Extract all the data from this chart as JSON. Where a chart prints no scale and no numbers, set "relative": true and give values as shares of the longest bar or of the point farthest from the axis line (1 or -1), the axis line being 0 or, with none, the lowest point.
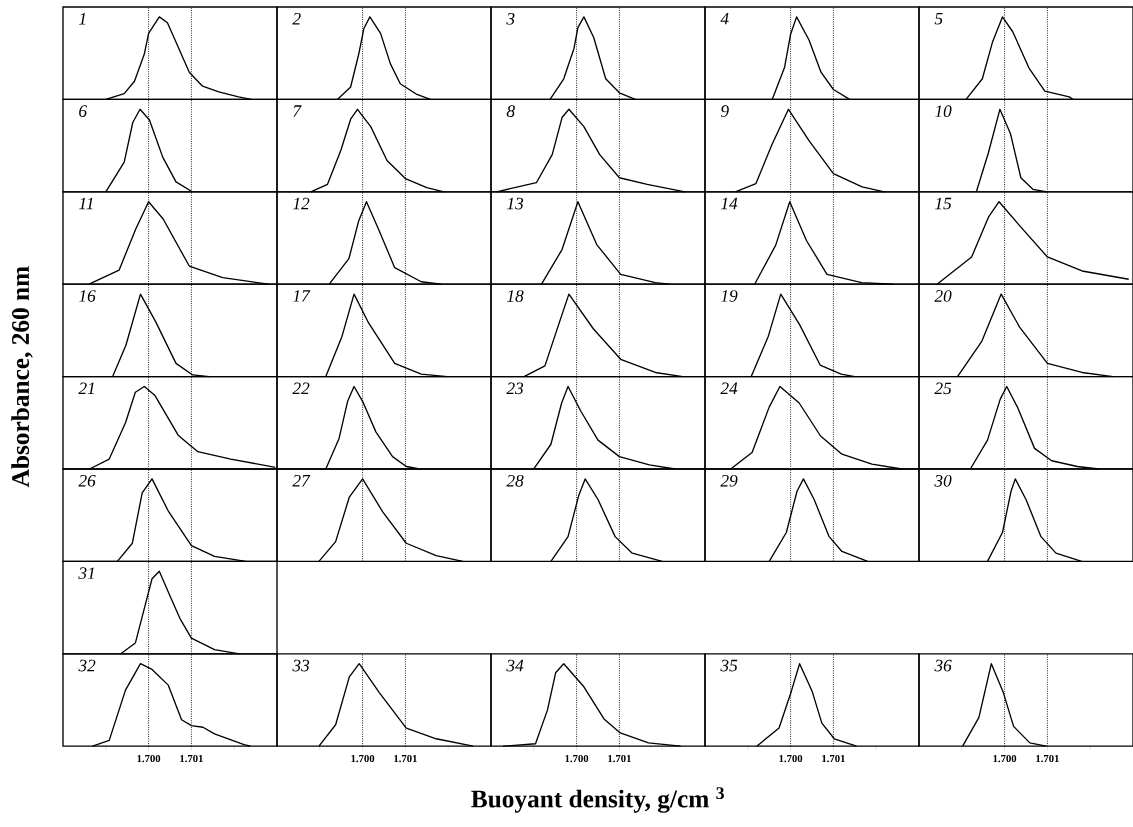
{
  "chart_data": [
    {
      "type": "line",
      "title": "1",
      "relative": true,
      "color": "#000000",
      "xlim": [
        1.698,
        1.703
      ],
      "ref_lines": [
        {
          "axis": "x",
          "value": 1.7,
          "line_style": "dotted"
        },
        {
          "axis": "x",
          "value": 1.701,
          "line_style": "dotted"
        }
      ],
      "x": [
        1.699,
        1.69943,
        1.69967,
        1.6999,
        1.7,
        1.70025,
        1.70044,
        1.70067,
        1.70095,
        1.70126,
        1.70164,
        1.7021,
        1.7024
      ],
      "values": [
        0,
        0.07,
        0.22,
        0.55,
        0.8,
        1,
        0.93,
        0.66,
        0.33,
        0.16,
        0.09,
        0.03,
        0
      ]
    },
    {
      "type": "line",
      "title": "2",
      "relative": true,
      "color": "#000000",
      "xlim": [
        1.698,
        1.703
      ],
      "ref_lines": [
        {
          "axis": "x",
          "value": 1.7,
          "line_style": "dotted"
        },
        {
          "axis": "x",
          "value": 1.701,
          "line_style": "dotted"
        }
      ],
      "x": [
        1.69941,
        1.69972,
        1.69991,
        1.70003,
        1.70017,
        1.70042,
        1.70065,
        1.70088,
        1.70127,
        1.70158
      ],
      "values": [
        0,
        0.15,
        0.55,
        0.86,
        1,
        0.8,
        0.43,
        0.19,
        0.06,
        0
      ]
    },
    {
      "type": "line",
      "title": "3",
      "relative": true,
      "color": "#000000",
      "xlim": [
        1.698,
        1.703
      ],
      "ref_lines": [
        {
          "axis": "x",
          "value": 1.7,
          "line_style": "dotted"
        },
        {
          "axis": "x",
          "value": 1.701,
          "line_style": "dotted"
        }
      ],
      "x": [
        1.69938,
        1.6997,
        1.69994,
        1.70003,
        1.70017,
        1.7004,
        1.70068,
        1.701,
        1.70137
      ],
      "values": [
        0,
        0.25,
        0.62,
        0.87,
        1,
        0.75,
        0.25,
        0.08,
        0
      ]
    },
    {
      "type": "line",
      "title": "4",
      "relative": true,
      "color": "#000000",
      "xlim": [
        1.698,
        1.703
      ],
      "ref_lines": [
        {
          "axis": "x",
          "value": 1.7,
          "line_style": "dotted"
        },
        {
          "axis": "x",
          "value": 1.701,
          "line_style": "dotted"
        }
      ],
      "x": [
        1.69957,
        1.69986,
        1.7,
        1.70014,
        1.70043,
        1.70071,
        1.701,
        1.70138
      ],
      "values": [
        0,
        0.39,
        0.79,
        1,
        0.72,
        0.33,
        0.12,
        0
      ]
    },
    {
      "type": "line",
      "title": "5",
      "relative": true,
      "color": "#000000",
      "xlim": [
        1.698,
        1.703
      ],
      "ref_lines": [
        {
          "axis": "x",
          "value": 1.7,
          "line_style": "dotted"
        },
        {
          "axis": "x",
          "value": 1.701,
          "line_style": "dotted"
        }
      ],
      "x": [
        1.6991,
        1.69948,
        1.69972,
        1.69995,
        1.70019,
        1.70057,
        1.70094,
        1.70151,
        1.7016
      ],
      "values": [
        0,
        0.25,
        0.7,
        1,
        0.82,
        0.38,
        0.1,
        0.03,
        0
      ]
    },
    {
      "type": "line",
      "title": "6",
      "relative": true,
      "color": "#000000",
      "xlim": [
        1.698,
        1.703
      ],
      "ref_lines": [
        {
          "axis": "x",
          "value": 1.7,
          "line_style": "dotted"
        },
        {
          "axis": "x",
          "value": 1.701,
          "line_style": "dotted"
        }
      ],
      "x": [
        1.699,
        1.69943,
        1.69963,
        1.6998,
        1.70002,
        1.70033,
        1.70064,
        1.70102
      ],
      "values": [
        0,
        0.36,
        0.84,
        1,
        0.87,
        0.42,
        0.12,
        0
      ]
    },
    {
      "type": "line",
      "title": "7",
      "relative": true,
      "color": "#000000",
      "xlim": [
        1.698,
        1.703
      ],
      "ref_lines": [
        {
          "axis": "x",
          "value": 1.7,
          "line_style": "dotted"
        },
        {
          "axis": "x",
          "value": 1.701,
          "line_style": "dotted"
        }
      ],
      "x": [
        1.69879,
        1.69918,
        1.69949,
        1.69972,
        1.69988,
        1.70019,
        1.70057,
        1.701,
        1.7015,
        1.7019
      ],
      "values": [
        0,
        0.09,
        0.5,
        0.88,
        1,
        0.79,
        0.38,
        0.16,
        0.05,
        0
      ]
    },
    {
      "type": "line",
      "title": "8",
      "relative": true,
      "color": "#000000",
      "xlim": [
        1.698,
        1.703
      ],
      "ref_lines": [
        {
          "axis": "x",
          "value": 1.7,
          "line_style": "dotted"
        },
        {
          "axis": "x",
          "value": 1.701,
          "line_style": "dotted"
        }
      ],
      "x": [
        1.69813,
        1.69906,
        1.69943,
        1.69966,
        1.69982,
        1.70017,
        1.70054,
        1.701,
        1.70165,
        1.70253
      ],
      "values": [
        0,
        0.11,
        0.45,
        0.9,
        1,
        0.79,
        0.45,
        0.17,
        0.09,
        0
      ]
    },
    {
      "type": "line",
      "title": "9",
      "relative": true,
      "color": "#000000",
      "xlim": [
        1.698,
        1.703
      ],
      "ref_lines": [
        {
          "axis": "x",
          "value": 1.7,
          "line_style": "dotted"
        },
        {
          "axis": "x",
          "value": 1.701,
          "line_style": "dotted"
        }
      ],
      "x": [
        1.69871,
        1.69919,
        1.69957,
        1.69995,
        1.70043,
        1.701,
        1.70167,
        1.70219
      ],
      "values": [
        0,
        0.1,
        0.58,
        1,
        0.62,
        0.22,
        0.06,
        0
      ]
    },
    {
      "type": "line",
      "title": "10",
      "relative": true,
      "color": "#000000",
      "xlim": [
        1.698,
        1.703
      ],
      "ref_lines": [
        {
          "axis": "x",
          "value": 1.7,
          "line_style": "dotted"
        },
        {
          "axis": "x",
          "value": 1.701,
          "line_style": "dotted"
        }
      ],
      "x": [
        1.69934,
        1.69962,
        1.69989,
        1.70014,
        1.70038,
        1.70066,
        1.70099
      ],
      "values": [
        0,
        0.47,
        1,
        0.7,
        0.17,
        0.03,
        0
      ]
    },
    {
      "type": "line",
      "title": "11",
      "relative": true,
      "color": "#000000",
      "xlim": [
        1.698,
        1.703
      ],
      "ref_lines": [
        {
          "axis": "x",
          "value": 1.7,
          "line_style": "dotted"
        },
        {
          "axis": "x",
          "value": 1.701,
          "line_style": "dotted"
        }
      ],
      "x": [
        1.69861,
        1.69931,
        1.6997,
        1.7,
        1.70034,
        1.70095,
        1.70173,
        1.7028
      ],
      "values": [
        0,
        0.17,
        0.67,
        1,
        0.79,
        0.22,
        0.08,
        0
      ]
    },
    {
      "type": "line",
      "title": "12",
      "relative": true,
      "color": "#000000",
      "xlim": [
        1.698,
        1.703
      ],
      "ref_lines": [
        {
          "axis": "x",
          "value": 1.7,
          "line_style": "dotted"
        },
        {
          "axis": "x",
          "value": 1.701,
          "line_style": "dotted"
        }
      ],
      "x": [
        1.69922,
        1.69968,
        1.69991,
        1.70009,
        1.70037,
        1.70075,
        1.70137,
        1.70183
      ],
      "values": [
        0,
        0.31,
        0.77,
        1,
        0.67,
        0.2,
        0.03,
        0
      ]
    },
    {
      "type": "line",
      "title": "13",
      "relative": true,
      "color": "#000000",
      "xlim": [
        1.698,
        1.703
      ],
      "ref_lines": [
        {
          "axis": "x",
          "value": 1.7,
          "line_style": "dotted"
        },
        {
          "axis": "x",
          "value": 1.701,
          "line_style": "dotted"
        }
      ],
      "x": [
        1.69918,
        1.69966,
        1.70003,
        1.70047,
        1.70103,
        1.70184,
        1.70216
      ],
      "values": [
        0,
        0.42,
        1,
        0.48,
        0.12,
        0.02,
        0
      ]
    },
    {
      "type": "line",
      "title": "14",
      "relative": true,
      "color": "#000000",
      "xlim": [
        1.698,
        1.703
      ],
      "ref_lines": [
        {
          "axis": "x",
          "value": 1.7,
          "line_style": "dotted"
        },
        {
          "axis": "x",
          "value": 1.701,
          "line_style": "dotted"
        }
      ],
      "x": [
        1.69916,
        1.69965,
        1.69998,
        1.70037,
        1.70085,
        1.70166,
        1.70239
      ],
      "values": [
        0,
        0.47,
        1,
        0.53,
        0.12,
        0.02,
        0
      ]
    },
    {
      "type": "line",
      "title": "15",
      "relative": true,
      "color": "#000000",
      "xlim": [
        1.698,
        1.703
      ],
      "ref_lines": [
        {
          "axis": "x",
          "value": 1.7,
          "line_style": "dotted"
        },
        {
          "axis": "x",
          "value": 1.701,
          "line_style": "dotted"
        }
      ],
      "x": [
        1.69842,
        1.69923,
        1.69963,
        1.69987,
        1.70035,
        1.701,
        1.70181,
        1.7029
      ],
      "values": [
        0,
        0.33,
        0.82,
        1,
        0.71,
        0.33,
        0.16,
        0.06
      ]
    },
    {
      "type": "line",
      "title": "16",
      "ylabel": "Absorbance, 260 nm",
      "relative": true,
      "color": "#000000",
      "xlim": [
        1.698,
        1.703
      ],
      "ref_lines": [
        {
          "axis": "x",
          "value": 1.7,
          "line_style": "dotted"
        },
        {
          "axis": "x",
          "value": 1.701,
          "line_style": "dotted"
        }
      ],
      "x": [
        1.69916,
        1.69947,
        1.69981,
        1.70017,
        1.70064,
        1.70103,
        1.70142
      ],
      "values": [
        0,
        0.38,
        1,
        0.66,
        0.16,
        0.02,
        0
      ]
    },
    {
      "type": "line",
      "title": "17",
      "relative": true,
      "color": "#000000",
      "xlim": [
        1.698,
        1.703
      ],
      "ref_lines": [
        {
          "axis": "x",
          "value": 1.7,
          "line_style": "dotted"
        },
        {
          "axis": "x",
          "value": 1.701,
          "line_style": "dotted"
        }
      ],
      "x": [
        1.69914,
        1.69952,
        1.6998,
        1.70014,
        1.70075,
        1.70137,
        1.70198
      ],
      "values": [
        0,
        0.49,
        1,
        0.65,
        0.16,
        0.03,
        0
      ]
    },
    {
      "type": "line",
      "title": "18",
      "relative": true,
      "color": "#000000",
      "xlim": [
        1.698,
        1.703
      ],
      "ref_lines": [
        {
          "axis": "x",
          "value": 1.7,
          "line_style": "dotted"
        },
        {
          "axis": "x",
          "value": 1.701,
          "line_style": "dotted"
        }
      ],
      "x": [
        1.69877,
        1.69926,
        1.69958,
        1.69982,
        1.70039,
        1.70103,
        1.70184,
        1.70248
      ],
      "values": [
        0,
        0.13,
        0.63,
        1,
        0.58,
        0.21,
        0.05,
        0
      ]
    },
    {
      "type": "line",
      "title": "19",
      "relative": true,
      "color": "#000000",
      "xlim": [
        1.698,
        1.703
      ],
      "ref_lines": [
        {
          "axis": "x",
          "value": 1.7,
          "line_style": "dotted"
        },
        {
          "axis": "x",
          "value": 1.701,
          "line_style": "dotted"
        }
      ],
      "x": [
        1.69908,
        1.69948,
        1.69977,
        1.70021,
        1.70069,
        1.70118,
        1.7015
      ],
      "values": [
        0,
        0.49,
        1,
        0.63,
        0.14,
        0.03,
        0
      ]
    },
    {
      "type": "line",
      "title": "20",
      "relative": true,
      "color": "#000000",
      "xlim": [
        1.698,
        1.703
      ],
      "ref_lines": [
        {
          "axis": "x",
          "value": 1.7,
          "line_style": "dotted"
        },
        {
          "axis": "x",
          "value": 1.701,
          "line_style": "dotted"
        }
      ],
      "x": [
        1.6989,
        1.69947,
        1.69992,
        1.70035,
        1.701,
        1.70181,
        1.70253
      ],
      "values": [
        0,
        0.43,
        1,
        0.6,
        0.16,
        0.05,
        0
      ]
    },
    {
      "type": "line",
      "title": "21",
      "relative": true,
      "color": "#000000",
      "xlim": [
        1.698,
        1.703
      ],
      "ref_lines": [
        {
          "axis": "x",
          "value": 1.7,
          "line_style": "dotted"
        },
        {
          "axis": "x",
          "value": 1.701,
          "line_style": "dotted"
        }
      ],
      "x": [
        1.69862,
        1.69908,
        1.69946,
        1.69969,
        1.6999,
        1.70015,
        1.70069,
        1.70115,
        1.70192,
        1.70296
      ],
      "values": [
        0,
        0.12,
        0.56,
        0.93,
        1,
        0.89,
        0.41,
        0.21,
        0.12,
        0.02
      ]
    },
    {
      "type": "line",
      "title": "22",
      "relative": true,
      "color": "#000000",
      "xlim": [
        1.698,
        1.703
      ],
      "ref_lines": [
        {
          "axis": "x",
          "value": 1.7,
          "line_style": "dotted"
        },
        {
          "axis": "x",
          "value": 1.701,
          "line_style": "dotted"
        }
      ],
      "x": [
        1.69914,
        1.69945,
        1.69965,
        1.6998,
        1.7,
        1.70031,
        1.7007,
        1.70102,
        1.70133
      ],
      "values": [
        0,
        0.37,
        0.82,
        1,
        0.82,
        0.45,
        0.15,
        0.03,
        0
      ]
    },
    {
      "type": "line",
      "title": "23",
      "relative": true,
      "color": "#000000",
      "xlim": [
        1.698,
        1.703
      ],
      "ref_lines": [
        {
          "axis": "x",
          "value": 1.7,
          "line_style": "dotted"
        },
        {
          "axis": "x",
          "value": 1.701,
          "line_style": "dotted"
        }
      ],
      "x": [
        1.699,
        1.6994,
        1.69965,
        1.6998,
        1.7001,
        1.7005,
        1.701,
        1.7017,
        1.7023
      ],
      "values": [
        0,
        0.3,
        0.8,
        1,
        0.7,
        0.35,
        0.15,
        0.05,
        0
      ]
    },
    {
      "type": "line",
      "title": "24",
      "relative": true,
      "color": "#000000",
      "xlim": [
        1.698,
        1.703
      ],
      "ref_lines": [
        {
          "axis": "x",
          "value": 1.7,
          "line_style": "dotted"
        },
        {
          "axis": "x",
          "value": 1.701,
          "line_style": "dotted"
        }
      ],
      "x": [
        1.6986,
        1.6991,
        1.6995,
        1.69975,
        1.7002,
        1.7007,
        1.7012,
        1.7019,
        1.7026
      ],
      "values": [
        0,
        0.2,
        0.75,
        1,
        0.8,
        0.4,
        0.18,
        0.06,
        0
      ]
    },
    {
      "type": "line",
      "title": "25",
      "relative": true,
      "color": "#000000",
      "xlim": [
        1.698,
        1.703
      ],
      "ref_lines": [
        {
          "axis": "x",
          "value": 1.7,
          "line_style": "dotted"
        },
        {
          "axis": "x",
          "value": 1.701,
          "line_style": "dotted"
        }
      ],
      "x": [
        1.6992,
        1.6996,
        1.6999,
        1.70005,
        1.7003,
        1.7007,
        1.7011,
        1.7017,
        1.7022
      ],
      "values": [
        0,
        0.35,
        0.85,
        1,
        0.75,
        0.25,
        0.1,
        0.03,
        0
      ]
    },
    {
      "type": "line",
      "title": "26",
      "relative": true,
      "color": "#000000",
      "xlim": [
        1.698,
        1.703
      ],
      "ref_lines": [
        {
          "axis": "x",
          "value": 1.7,
          "line_style": "dotted"
        },
        {
          "axis": "x",
          "value": 1.701,
          "line_style": "dotted"
        }
      ],
      "x": [
        1.69927,
        1.69962,
        1.69985,
        1.70008,
        1.70046,
        1.701,
        1.70154,
        1.70227
      ],
      "values": [
        0,
        0.22,
        0.83,
        1,
        0.61,
        0.19,
        0.06,
        0
      ]
    },
    {
      "type": "line",
      "title": "27",
      "relative": true,
      "color": "#000000",
      "xlim": [
        1.698,
        1.703
      ],
      "ref_lines": [
        {
          "axis": "x",
          "value": 1.7,
          "line_style": "dotted"
        },
        {
          "axis": "x",
          "value": 1.701,
          "line_style": "dotted"
        }
      ],
      "x": [
        1.69898,
        1.69937,
        1.69969,
        1.7,
        1.70047,
        1.70102,
        1.70172,
        1.70234
      ],
      "values": [
        0,
        0.24,
        0.78,
        1,
        0.6,
        0.22,
        0.07,
        0
      ]
    },
    {
      "type": "line",
      "title": "28",
      "relative": true,
      "color": "#000000",
      "xlim": [
        1.698,
        1.703
      ],
      "ref_lines": [
        {
          "axis": "x",
          "value": 1.7,
          "line_style": "dotted"
        },
        {
          "axis": "x",
          "value": 1.701,
          "line_style": "dotted"
        }
      ],
      "x": [
        1.6994,
        1.6998,
        1.70005,
        1.7002,
        1.7005,
        1.7009,
        1.7013,
        1.702
      ],
      "values": [
        0,
        0.3,
        0.8,
        1,
        0.75,
        0.3,
        0.1,
        0
      ]
    },
    {
      "type": "line",
      "title": "29",
      "relative": true,
      "color": "#000000",
      "xlim": [
        1.698,
        1.703
      ],
      "ref_lines": [
        {
          "axis": "x",
          "value": 1.7,
          "line_style": "dotted"
        },
        {
          "axis": "x",
          "value": 1.701,
          "line_style": "dotted"
        }
      ],
      "x": [
        1.6995,
        1.6999,
        1.70015,
        1.7003,
        1.70055,
        1.7009,
        1.7012,
        1.7018
      ],
      "values": [
        0,
        0.35,
        0.85,
        1,
        0.75,
        0.3,
        0.12,
        0
      ]
    },
    {
      "type": "line",
      "title": "30",
      "relative": true,
      "color": "#000000",
      "xlim": [
        1.698,
        1.703
      ],
      "ref_lines": [
        {
          "axis": "x",
          "value": 1.7,
          "line_style": "dotted"
        },
        {
          "axis": "x",
          "value": 1.701,
          "line_style": "dotted"
        }
      ],
      "x": [
        1.6996,
        1.69995,
        1.70015,
        1.70025,
        1.7005,
        1.70085,
        1.7012,
        1.7018
      ],
      "values": [
        0,
        0.35,
        0.85,
        1,
        0.75,
        0.3,
        0.1,
        0
      ]
    },
    {
      "type": "line",
      "title": "31",
      "relative": true,
      "color": "#000000",
      "xlim": [
        1.698,
        1.703
      ],
      "ref_lines": [
        {
          "axis": "x",
          "value": 1.7,
          "line_style": "dotted"
        },
        {
          "axis": "x",
          "value": 1.701,
          "line_style": "dotted"
        }
      ],
      "x": [
        1.69935,
        1.69969,
        1.69992,
        1.70008,
        1.70025,
        1.70046,
        1.70073,
        1.701,
        1.70154,
        1.70212
      ],
      "values": [
        0,
        0.13,
        0.59,
        0.91,
        1,
        0.75,
        0.43,
        0.19,
        0.05,
        0
      ]
    },
    {
      "type": "line",
      "title": "32",
      "relative": true,
      "color": "#000000",
      "xlim": [
        1.698,
        1.703
      ],
      "xticks": [
        {
          "value": 1.699,
          "label": null
        },
        {
          "value": 1.7,
          "label": "1.700"
        },
        {
          "value": 1.701,
          "label": "1.701"
        },
        {
          "value": 1.702,
          "label": null
        }
      ],
      "ref_lines": [
        {
          "axis": "x",
          "value": 1.7,
          "line_style": "dotted"
        },
        {
          "axis": "x",
          "value": 1.701,
          "line_style": "dotted"
        }
      ],
      "x": [
        1.69869,
        1.69908,
        1.69946,
        1.69981,
        1.70008,
        1.70046,
        1.70077,
        1.701,
        1.70127,
        1.70154,
        1.70223,
        1.70238
      ],
      "values": [
        0,
        0.07,
        0.68,
        1,
        0.93,
        0.74,
        0.32,
        0.25,
        0.23,
        0.15,
        0.02,
        0
      ]
    },
    {
      "type": "line",
      "title": "33",
      "relative": true,
      "color": "#000000",
      "xlim": [
        1.698,
        1.703
      ],
      "xticks": [
        {
          "value": 1.699,
          "label": null
        },
        {
          "value": 1.7,
          "label": "1.700"
        },
        {
          "value": 1.701,
          "label": "1.701"
        },
        {
          "value": 1.702,
          "label": null
        }
      ],
      "ref_lines": [
        {
          "axis": "x",
          "value": 1.7,
          "line_style": "dotted"
        },
        {
          "axis": "x",
          "value": 1.701,
          "line_style": "dotted"
        }
      ],
      "x": [
        1.69898,
        1.69937,
        1.69969,
        1.69992,
        1.70039,
        1.70102,
        1.70172,
        1.70258
      ],
      "values": [
        0,
        0.26,
        0.84,
        1,
        0.65,
        0.22,
        0.09,
        0
      ]
    },
    {
      "type": "line",
      "title": "34",
      "xlabel": "Buoyant density, g/cm $^{3}$",
      "relative": true,
      "color": "#000000",
      "xlim": [
        1.698,
        1.703
      ],
      "xticks": [
        {
          "value": 1.699,
          "label": null
        },
        {
          "value": 1.7,
          "label": "1.700"
        },
        {
          "value": 1.701,
          "label": "1.701"
        },
        {
          "value": 1.702,
          "label": null
        }
      ],
      "ref_lines": [
        {
          "axis": "x",
          "value": 1.7,
          "line_style": "dotted"
        },
        {
          "axis": "x",
          "value": 1.701,
          "line_style": "dotted"
        }
      ],
      "x": [
        1.69828,
        1.69904,
        1.69932,
        1.69951,
        1.6997,
        1.70017,
        1.70064,
        1.70102,
        1.70168,
        1.70243
      ],
      "values": [
        0,
        0.03,
        0.44,
        0.89,
        1,
        0.72,
        0.33,
        0.16,
        0.04,
        0
      ]
    },
    {
      "type": "line",
      "title": "35",
      "relative": true,
      "color": "#000000",
      "xlim": [
        1.698,
        1.703
      ],
      "xticks": [
        {
          "value": 1.699,
          "label": null
        },
        {
          "value": 1.7,
          "label": "1.700"
        },
        {
          "value": 1.701,
          "label": "1.701"
        },
        {
          "value": 1.702,
          "label": null
        }
      ],
      "ref_lines": [
        {
          "axis": "x",
          "value": 1.7,
          "line_style": "dotted"
        },
        {
          "axis": "x",
          "value": 1.701,
          "line_style": "dotted"
        }
      ],
      "x": [
        1.69921,
        1.69973,
        1.70002,
        1.70021,
        1.7005,
        1.70073,
        1.70102,
        1.70154
      ],
      "values": [
        0,
        0.22,
        0.67,
        1,
        0.67,
        0.28,
        0.09,
        0
      ]
    },
    {
      "type": "line",
      "title": "36",
      "relative": true,
      "color": "#000000",
      "xlim": [
        1.698,
        1.703
      ],
      "xticks": [
        {
          "value": 1.699,
          "label": null
        },
        {
          "value": 1.7,
          "label": "1.700"
        },
        {
          "value": 1.701,
          "label": "1.701"
        },
        {
          "value": 1.702,
          "label": null
        }
      ],
      "ref_lines": [
        {
          "axis": "x",
          "value": 1.7,
          "line_style": "dotted"
        },
        {
          "axis": "x",
          "value": 1.701,
          "line_style": "dotted"
        }
      ],
      "x": [
        1.69902,
        1.6994,
        1.69969,
        1.69997,
        1.70021,
        1.70059,
        1.70097
      ],
      "values": [
        0,
        0.35,
        1,
        0.65,
        0.24,
        0.04,
        0
      ]
    }
  ]
}
